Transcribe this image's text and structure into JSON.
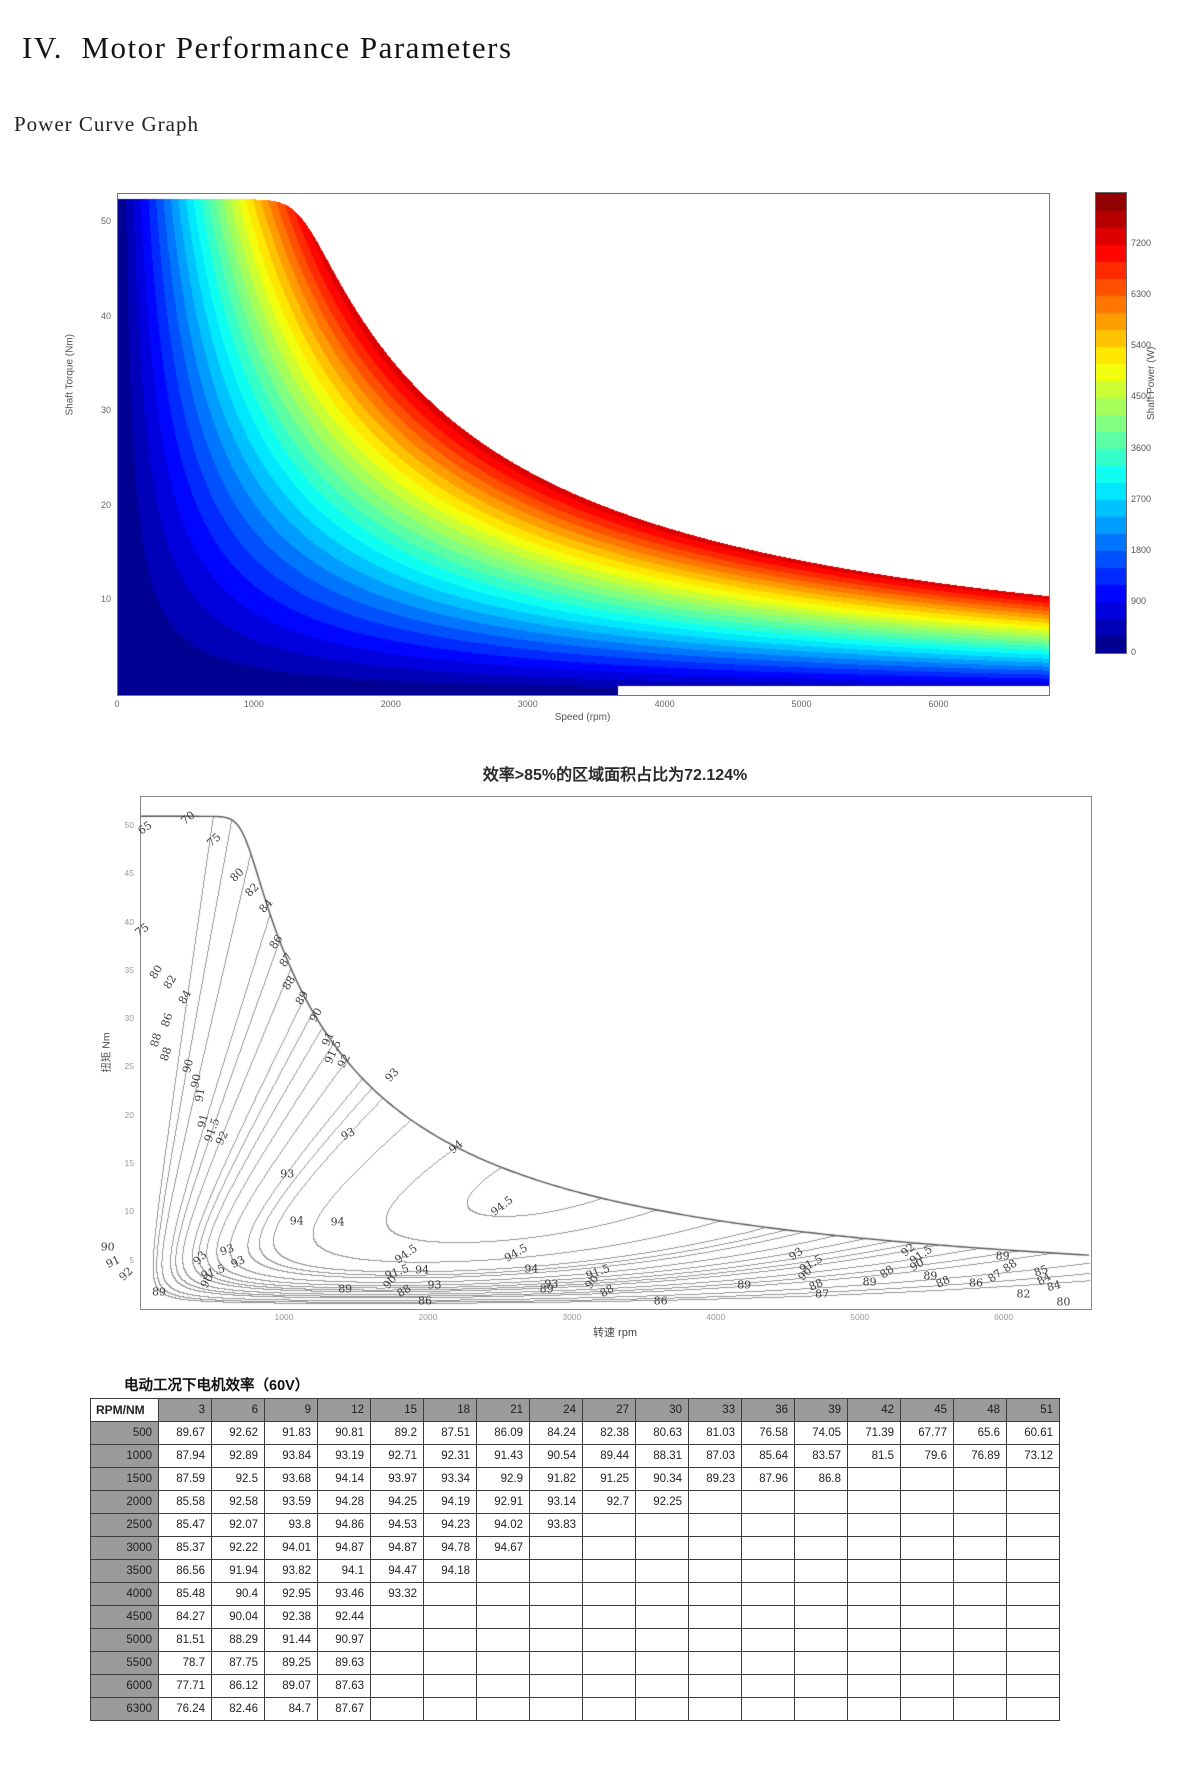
{
  "page": {
    "heading": "IV.  Motor Performance Parameters",
    "subheading": "Power Curve Graph"
  },
  "chart_data": [
    {
      "id": "power-map",
      "type": "heatmap",
      "title": "",
      "xlabel": "Speed (rpm)",
      "ylabel": "Shaft Torque (Nm)",
      "x_range": [
        0,
        6800
      ],
      "y_range": [
        0,
        53
      ],
      "x_ticks": [
        0,
        1000,
        2000,
        3000,
        4000,
        5000,
        6000
      ],
      "y_ticks": [
        10,
        20,
        30,
        40,
        50
      ],
      "envelope": {
        "max_torque_nm": 52.5,
        "base_speed_rpm": 1350,
        "const_power_w": 7420
      },
      "colorbar": {
        "label": "Shaft Power (W)",
        "ticks": [
          0,
          900,
          1800,
          2700,
          3600,
          4500,
          5400,
          6300,
          7200
        ],
        "range": [
          0,
          8100
        ],
        "band_step_w": 300,
        "colormap": "jet"
      }
    },
    {
      "id": "efficiency-map",
      "type": "contour",
      "title": "效率>85%的区域面积占比为72.124%",
      "efficiency_gt85_area_pct": 72.124,
      "xlabel": "转速 rpm",
      "ylabel": "扭矩 Nm",
      "x_range": [
        0,
        6600
      ],
      "y_range": [
        0,
        53
      ],
      "x_ticks": [
        1000,
        2000,
        3000,
        4000,
        5000,
        6000
      ],
      "y_ticks": [
        5,
        10,
        15,
        20,
        25,
        30,
        35,
        40,
        45,
        50
      ],
      "levels": [
        65,
        70,
        75,
        80,
        82,
        84,
        86,
        87,
        88,
        89,
        90,
        91,
        91.5,
        92,
        93,
        94,
        94.5
      ],
      "envelope": {
        "max_torque_nm": 51,
        "base_speed_rpm": 720
      },
      "labels": [
        [
          "65",
          0.005,
          0.062,
          -35
        ],
        [
          "70",
          0.05,
          0.042,
          -38
        ],
        [
          "75",
          0.078,
          0.086,
          -42
        ],
        [
          "80",
          0.102,
          0.154,
          -45
        ],
        [
          "82",
          0.118,
          0.184,
          -45
        ],
        [
          "84",
          0.133,
          0.214,
          -48
        ],
        [
          "75",
          0.002,
          0.262,
          -35
        ],
        [
          "80",
          0.017,
          0.343,
          -58
        ],
        [
          "82",
          0.032,
          0.364,
          -58
        ],
        [
          "84",
          0.047,
          0.392,
          -60
        ],
        [
          "86",
          0.143,
          0.286,
          -55
        ],
        [
          "87",
          0.154,
          0.32,
          -55
        ],
        [
          "88",
          0.157,
          0.366,
          -57
        ],
        [
          "89",
          0.171,
          0.394,
          -57
        ],
        [
          "90",
          0.185,
          0.428,
          -60
        ],
        [
          "91",
          0.198,
          0.474,
          -66
        ],
        [
          "91.5",
          0.203,
          0.5,
          -66
        ],
        [
          "92",
          0.215,
          0.518,
          -60
        ],
        [
          "86",
          0.028,
          0.438,
          -72
        ],
        [
          "88",
          0.017,
          0.476,
          -74
        ],
        [
          "88",
          0.027,
          0.504,
          -72
        ],
        [
          "90",
          0.051,
          0.528,
          -76
        ],
        [
          "90",
          0.059,
          0.556,
          -78
        ],
        [
          "91",
          0.063,
          0.584,
          -80
        ],
        [
          "91",
          0.066,
          0.634,
          -76
        ],
        [
          "91.5",
          0.076,
          0.652,
          -70
        ],
        [
          "92",
          0.086,
          0.668,
          -62
        ],
        [
          "93",
          0.265,
          0.545,
          -48
        ],
        [
          "93",
          0.219,
          0.66,
          -28
        ],
        [
          "93",
          0.155,
          0.738,
          0
        ],
        [
          "94",
          0.165,
          0.83,
          0
        ],
        [
          "94",
          0.333,
          0.686,
          -40
        ],
        [
          "94.5",
          0.381,
          0.8,
          -38
        ],
        [
          "94",
          0.208,
          0.832,
          0
        ],
        [
          "94.5",
          0.28,
          0.894,
          -35
        ],
        [
          "94",
          0.297,
          0.926,
          0
        ],
        [
          "93",
          0.31,
          0.956,
          0
        ],
        [
          "94.5",
          0.396,
          0.892,
          -30
        ],
        [
          "94",
          0.412,
          0.924,
          0
        ],
        [
          "93",
          0.433,
          0.954,
          0
        ],
        [
          "90",
          -0.034,
          0.88,
          0
        ],
        [
          "91",
          -0.028,
          0.91,
          -25
        ],
        [
          "92",
          -0.015,
          0.934,
          -45
        ],
        [
          "93",
          0.063,
          0.902,
          -48
        ],
        [
          "93",
          0.092,
          0.886,
          -20
        ],
        [
          "89",
          0.02,
          0.968,
          0
        ],
        [
          "90",
          0.07,
          0.948,
          -60
        ],
        [
          "91.5",
          0.077,
          0.93,
          -20
        ],
        [
          "93",
          0.103,
          0.91,
          -25
        ],
        [
          "89",
          0.216,
          0.962,
          0
        ],
        [
          "91.5",
          0.27,
          0.93,
          -20
        ],
        [
          "90",
          0.263,
          0.95,
          -50
        ],
        [
          "88",
          0.278,
          0.966,
          -30
        ],
        [
          "86",
          0.3,
          0.986,
          0
        ],
        [
          "89",
          0.428,
          0.962,
          0
        ],
        [
          "91.5",
          0.482,
          0.93,
          -20
        ],
        [
          "90",
          0.476,
          0.95,
          -50
        ],
        [
          "88",
          0.492,
          0.966,
          -30
        ],
        [
          "86",
          0.548,
          0.986,
          0
        ],
        [
          "89",
          0.636,
          0.956,
          0
        ],
        [
          "93",
          0.69,
          0.894,
          -35
        ],
        [
          "91.5",
          0.706,
          0.914,
          -30
        ],
        [
          "90",
          0.7,
          0.934,
          -45
        ],
        [
          "88",
          0.712,
          0.956,
          -25
        ],
        [
          "87",
          0.718,
          0.972,
          0
        ],
        [
          "89",
          0.768,
          0.95,
          0
        ],
        [
          "88",
          0.786,
          0.93,
          -35
        ],
        [
          "92",
          0.808,
          0.886,
          -40
        ],
        [
          "91.5",
          0.822,
          0.896,
          -35
        ],
        [
          "90",
          0.818,
          0.916,
          -30
        ],
        [
          "89",
          0.832,
          0.938,
          0
        ],
        [
          "88",
          0.845,
          0.95,
          -25
        ],
        [
          "86",
          0.88,
          0.952,
          0
        ],
        [
          "87",
          0.9,
          0.938,
          -35
        ],
        [
          "88",
          0.916,
          0.918,
          -35
        ],
        [
          "89",
          0.908,
          0.898,
          0
        ],
        [
          "85",
          0.948,
          0.928,
          -20
        ],
        [
          "84",
          0.952,
          0.944,
          -30
        ],
        [
          "82",
          0.93,
          0.972,
          0
        ],
        [
          "84",
          0.962,
          0.958,
          -15
        ],
        [
          "80",
          0.972,
          0.988,
          0
        ]
      ]
    }
  ],
  "table": {
    "title": "电动工况下电机效率（60V）",
    "corner": "RPM/NM",
    "col_headers": [
      "3",
      "6",
      "9",
      "12",
      "15",
      "18",
      "21",
      "24",
      "27",
      "30",
      "33",
      "36",
      "39",
      "42",
      "45",
      "48",
      "51"
    ],
    "rows": [
      {
        "rpm": "500",
        "values": [
          "89.67",
          "92.62",
          "91.83",
          "90.81",
          "89.2",
          "87.51",
          "86.09",
          "84.24",
          "82.38",
          "80.63",
          "81.03",
          "76.58",
          "74.05",
          "71.39",
          "67.77",
          "65.6",
          "60.61"
        ]
      },
      {
        "rpm": "1000",
        "values": [
          "87.94",
          "92.89",
          "93.84",
          "93.19",
          "92.71",
          "92.31",
          "91.43",
          "90.54",
          "89.44",
          "88.31",
          "87.03",
          "85.64",
          "83.57",
          "81.5",
          "79.6",
          "76.89",
          "73.12"
        ]
      },
      {
        "rpm": "1500",
        "values": [
          "87.59",
          "92.5",
          "93.68",
          "94.14",
          "93.97",
          "93.34",
          "92.9",
          "91.82",
          "91.25",
          "90.34",
          "89.23",
          "87.96",
          "86.8"
        ]
      },
      {
        "rpm": "2000",
        "values": [
          "85.58",
          "92.58",
          "93.59",
          "94.28",
          "94.25",
          "94.19",
          "92.91",
          "93.14",
          "92.7",
          "92.25"
        ]
      },
      {
        "rpm": "2500",
        "values": [
          "85.47",
          "92.07",
          "93.8",
          "94.86",
          "94.53",
          "94.23",
          "94.02",
          "93.83"
        ]
      },
      {
        "rpm": "3000",
        "values": [
          "85.37",
          "92.22",
          "94.01",
          "94.87",
          "94.87",
          "94.78",
          "94.67"
        ]
      },
      {
        "rpm": "3500",
        "values": [
          "86.56",
          "91.94",
          "93.82",
          "94.1",
          "94.47",
          "94.18"
        ]
      },
      {
        "rpm": "4000",
        "values": [
          "85.48",
          "90.4",
          "92.95",
          "93.46",
          "93.32"
        ]
      },
      {
        "rpm": "4500",
        "values": [
          "84.27",
          "90.04",
          "92.38",
          "92.44"
        ]
      },
      {
        "rpm": "5000",
        "values": [
          "81.51",
          "88.29",
          "91.44",
          "90.97"
        ]
      },
      {
        "rpm": "5500",
        "values": [
          "78.7",
          "87.75",
          "89.25",
          "89.63"
        ]
      },
      {
        "rpm": "6000",
        "values": [
          "77.71",
          "86.12",
          "89.07",
          "87.63"
        ]
      },
      {
        "rpm": "6300",
        "values": [
          "76.24",
          "82.46",
          "84.7",
          "87.67"
        ]
      }
    ]
  }
}
